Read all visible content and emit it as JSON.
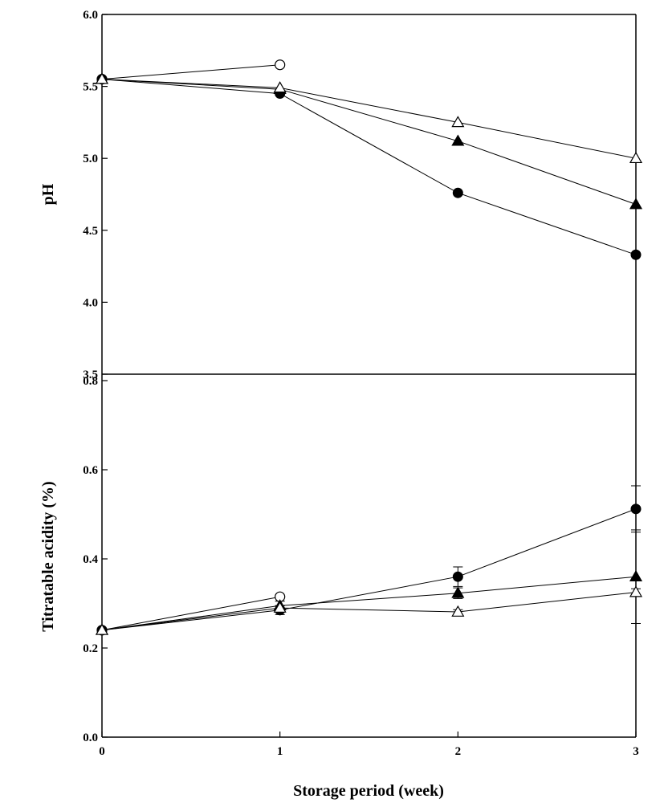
{
  "chart_data": [
    {
      "type": "line",
      "title": "",
      "xlabel": "",
      "ylabel": "pH",
      "x": [
        0,
        1,
        2,
        3
      ],
      "xlim": [
        0,
        3
      ],
      "ylim": [
        3.5,
        6.0
      ],
      "yticks": [
        "3.5",
        "4.0",
        "4.5",
        "5.0",
        "5.5",
        "6.0"
      ],
      "grid": false,
      "legend": "none",
      "series": [
        {
          "marker": "open-circle",
          "values": [
            5.55,
            5.65,
            null,
            null
          ]
        },
        {
          "marker": "filled-circle",
          "values": [
            5.55,
            5.45,
            4.76,
            4.33
          ]
        },
        {
          "marker": "filled-triangle",
          "values": [
            5.55,
            5.48,
            5.12,
            4.68
          ]
        },
        {
          "marker": "open-triangle",
          "values": [
            5.55,
            5.49,
            5.25,
            5.0
          ]
        }
      ]
    },
    {
      "type": "line",
      "title": "",
      "xlabel": "Storage period (week)",
      "ylabel": "Titratable acidity (%)",
      "x": [
        0,
        1,
        2,
        3
      ],
      "xlim": [
        0,
        3
      ],
      "ylim": [
        0.0,
        0.8
      ],
      "xticks": [
        "0",
        "1",
        "2",
        "3"
      ],
      "yticks": [
        "0.0",
        "0.2",
        "0.4",
        "0.6",
        "0.8"
      ],
      "grid": false,
      "legend": "none",
      "series": [
        {
          "marker": "open-circle",
          "values": [
            0.24,
            0.315,
            null,
            null
          ],
          "errors": [
            0,
            0,
            null,
            null
          ]
        },
        {
          "marker": "filled-circle",
          "values": [
            0.24,
            0.285,
            0.36,
            0.512
          ],
          "errors": [
            0,
            0.01,
            0.022,
            0.052
          ]
        },
        {
          "marker": "filled-triangle",
          "values": [
            0.24,
            0.295,
            0.323,
            0.36
          ],
          "errors": [
            0,
            0.01,
            0.012,
            0.105
          ]
        },
        {
          "marker": "open-triangle",
          "values": [
            0.24,
            0.29,
            0.281,
            0.325
          ],
          "errors": [
            0,
            0.005,
            0.005,
            0.008
          ]
        }
      ]
    }
  ]
}
